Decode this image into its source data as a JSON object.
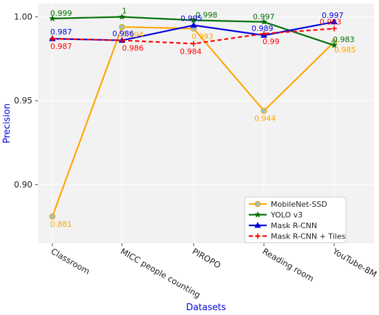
{
  "chart_data": {
    "type": "line",
    "title": "",
    "xlabel": "Datasets",
    "ylabel": "Precision",
    "categories": [
      "Classroom",
      "MICC people counting",
      "PIROPO",
      "Reading room",
      "YouTube-8M"
    ],
    "ylim": [
      0.865,
      1.008
    ],
    "yticks": [
      0.9,
      0.95,
      1.0
    ],
    "ytick_labels": [
      "0.90",
      "0.95",
      "1.00"
    ],
    "grid": true,
    "legend": "bottom-right",
    "series": [
      {
        "name": "MobileNet-SSD",
        "values": [
          0.881,
          0.994,
          0.993,
          0.944,
          0.985
        ],
        "labels": [
          "0.881",
          "0.994",
          "0.993",
          "0.944",
          "0.985"
        ],
        "color": "#ffa500",
        "marker": "circle",
        "linestyle": "solid"
      },
      {
        "name": "YOLO v3",
        "values": [
          0.999,
          1.0,
          0.998,
          0.997,
          0.983
        ],
        "labels": [
          "0.999",
          "1",
          "0.998",
          "0.997",
          "0.983"
        ],
        "color": "#007000",
        "marker": "star",
        "linestyle": "solid"
      },
      {
        "name": "Mask R-CNN",
        "values": [
          0.987,
          0.986,
          0.995,
          0.989,
          0.997
        ],
        "labels": [
          "0.987",
          "0.986",
          "0.995",
          "0.989",
          "0.997"
        ],
        "color": "#0000e0",
        "marker": "triangle",
        "linestyle": "solid"
      },
      {
        "name": "Mask R-CNN + Tiles",
        "values": [
          0.987,
          0.986,
          0.984,
          0.99,
          0.993
        ],
        "labels": [
          "0.987",
          "0.986",
          "0.984",
          "0.99",
          "0.993"
        ],
        "color": "#ff0000",
        "marker": "plus",
        "linestyle": "dashed"
      }
    ]
  }
}
